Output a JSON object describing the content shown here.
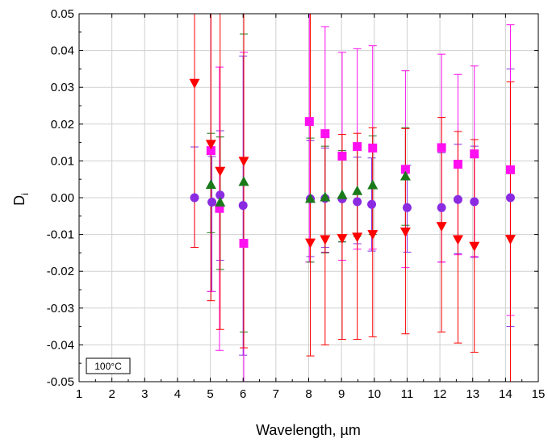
{
  "chart_data": {
    "type": "scatter",
    "title": "",
    "xlabel": "Wavelength, µm",
    "ylabel_main": "D",
    "ylabel_sub": "i",
    "xlim": [
      1,
      15
    ],
    "ylim": [
      -0.05,
      0.05
    ],
    "xticks": [
      1,
      2,
      3,
      4,
      5,
      6,
      7,
      8,
      9,
      10,
      11,
      12,
      13,
      14,
      15
    ],
    "xtick_labels": [
      "1",
      "2",
      "3",
      "4",
      "5",
      "6",
      "7",
      "8",
      "9",
      "10",
      "11",
      "12",
      "13",
      "14",
      "15"
    ],
    "yticks": [
      -0.05,
      -0.04,
      -0.03,
      -0.02,
      -0.01,
      0,
      0.01,
      0.02,
      0.03,
      0.04,
      0.05
    ],
    "ytick_labels": [
      "-0.05",
      "-0.04",
      "-0.03",
      "-0.02",
      "-0.01",
      "0.00",
      "0.01",
      "0.02",
      "0.03",
      "0.04",
      "0.05"
    ],
    "grid": true,
    "annotation": "100°C",
    "series": [
      {
        "marker": "circle",
        "color": "#8a2be2",
        "points": [
          {
            "x": 4.52,
            "y": 0.0,
            "lo": -0.0135,
            "hi": 0.0138
          },
          {
            "x": 5.05,
            "y": -0.0012,
            "lo": -0.0255,
            "hi": 0.0112
          },
          {
            "x": 5.3,
            "y": 0.0007,
            "lo": -0.017,
            "hi": 0.0182
          },
          {
            "x": 6.0,
            "y": -0.0021,
            "lo": -0.0428,
            "hi": 0.0385
          },
          {
            "x": 8.05,
            "y": -0.0003,
            "lo": -0.016,
            "hi": 0.0155
          },
          {
            "x": 8.5,
            "y": -0.0002,
            "lo": -0.0135,
            "hi": 0.0135
          },
          {
            "x": 9.02,
            "y": -0.0003,
            "lo": -0.012,
            "hi": 0.0118
          },
          {
            "x": 9.48,
            "y": -0.0011,
            "lo": -0.0125,
            "hi": 0.011
          },
          {
            "x": 9.92,
            "y": -0.0018,
            "lo": -0.0145,
            "hi": 0.0108
          },
          {
            "x": 11.0,
            "y": -0.0027,
            "lo": -0.0148,
            "hi": 0.0088
          },
          {
            "x": 12.05,
            "y": -0.0027,
            "lo": -0.0175,
            "hi": 0.0122
          },
          {
            "x": 12.55,
            "y": -0.0005,
            "lo": -0.0152,
            "hi": 0.0145
          },
          {
            "x": 13.05,
            "y": -0.0011,
            "lo": -0.0162,
            "hi": 0.014
          },
          {
            "x": 14.15,
            "y": 0.0,
            "lo": -0.035,
            "hi": 0.035
          }
        ]
      },
      {
        "marker": "square",
        "color": "#ff10f0",
        "points": [
          {
            "x": 5.02,
            "y": 0.0128,
            "lo": -0.0255,
            "hi": 0.0535
          },
          {
            "x": 5.28,
            "y": -0.0029,
            "lo": -0.0415,
            "hi": 0.0355
          },
          {
            "x": 6.02,
            "y": -0.0124,
            "lo": -0.05,
            "hi": 0.0395
          },
          {
            "x": 8.02,
            "y": 0.0207,
            "lo": -0.0175,
            "hi": 0.0535
          },
          {
            "x": 8.5,
            "y": 0.0174,
            "lo": -0.0148,
            "hi": 0.0465
          },
          {
            "x": 9.02,
            "y": 0.0113,
            "lo": -0.017,
            "hi": 0.0395
          },
          {
            "x": 9.48,
            "y": 0.0139,
            "lo": -0.014,
            "hi": 0.0405
          },
          {
            "x": 9.95,
            "y": 0.0135,
            "lo": -0.014,
            "hi": 0.0413
          },
          {
            "x": 10.95,
            "y": 0.0077,
            "lo": -0.019,
            "hi": 0.0345
          },
          {
            "x": 12.05,
            "y": 0.0136,
            "lo": -0.0175,
            "hi": 0.039
          },
          {
            "x": 12.55,
            "y": 0.0091,
            "lo": -0.0155,
            "hi": 0.0335
          },
          {
            "x": 13.05,
            "y": 0.0119,
            "lo": -0.016,
            "hi": 0.0358
          },
          {
            "x": 14.15,
            "y": 0.0076,
            "lo": -0.032,
            "hi": 0.047
          }
        ]
      },
      {
        "marker": "triangle-up",
        "color": "#1a7a1a",
        "points": [
          {
            "x": 5.02,
            "y": 0.0035,
            "lo": -0.0095,
            "hi": 0.0175
          },
          {
            "x": 5.3,
            "y": -0.0013,
            "lo": -0.0195,
            "hi": 0.0165
          },
          {
            "x": 6.02,
            "y": 0.0043,
            "lo": -0.0365,
            "hi": 0.0445
          },
          {
            "x": 8.05,
            "y": -0.0003,
            "lo": -0.0175,
            "hi": 0.0162
          },
          {
            "x": 8.5,
            "y": 0.0001,
            "lo": -0.015,
            "hi": 0.014
          },
          {
            "x": 9.02,
            "y": 0.0007,
            "lo": -0.012,
            "hi": 0.0128
          },
          {
            "x": 9.48,
            "y": 0.0018,
            "lo": -0.0105,
            "hi": 0.0142
          },
          {
            "x": 9.95,
            "y": 0.0034,
            "lo": -0.01,
            "hi": 0.0168
          },
          {
            "x": 10.95,
            "y": 0.0058,
            "lo": -0.0075,
            "hi": 0.019
          }
        ]
      },
      {
        "marker": "triangle-down",
        "color": "#ff0000",
        "points": [
          {
            "x": 4.52,
            "y": 0.0312,
            "lo": -0.0135,
            "hi": 0.0535
          },
          {
            "x": 5.02,
            "y": 0.0146,
            "lo": -0.028,
            "hi": 0.0535
          },
          {
            "x": 5.3,
            "y": 0.0073,
            "lo": -0.0358,
            "hi": 0.0535
          },
          {
            "x": 6.02,
            "y": 0.01,
            "lo": -0.0408,
            "hi": 0.0535
          },
          {
            "x": 8.05,
            "y": -0.0122,
            "lo": -0.043,
            "hi": 0.0535
          },
          {
            "x": 8.5,
            "y": -0.0113,
            "lo": -0.04,
            "hi": 0.0175
          },
          {
            "x": 9.02,
            "y": -0.011,
            "lo": -0.0385,
            "hi": 0.0172
          },
          {
            "x": 9.48,
            "y": -0.0106,
            "lo": -0.0385,
            "hi": 0.0175
          },
          {
            "x": 9.95,
            "y": -0.0099,
            "lo": -0.0378,
            "hi": 0.019
          },
          {
            "x": 10.95,
            "y": -0.0092,
            "lo": -0.037,
            "hi": 0.0188
          },
          {
            "x": 12.05,
            "y": -0.0077,
            "lo": -0.0365,
            "hi": 0.0218
          },
          {
            "x": 12.55,
            "y": -0.0113,
            "lo": -0.0395,
            "hi": 0.018
          },
          {
            "x": 13.05,
            "y": -0.0131,
            "lo": -0.042,
            "hi": 0.0158
          },
          {
            "x": 14.15,
            "y": -0.0112,
            "lo": -0.0535,
            "hi": 0.0315
          }
        ]
      }
    ]
  }
}
